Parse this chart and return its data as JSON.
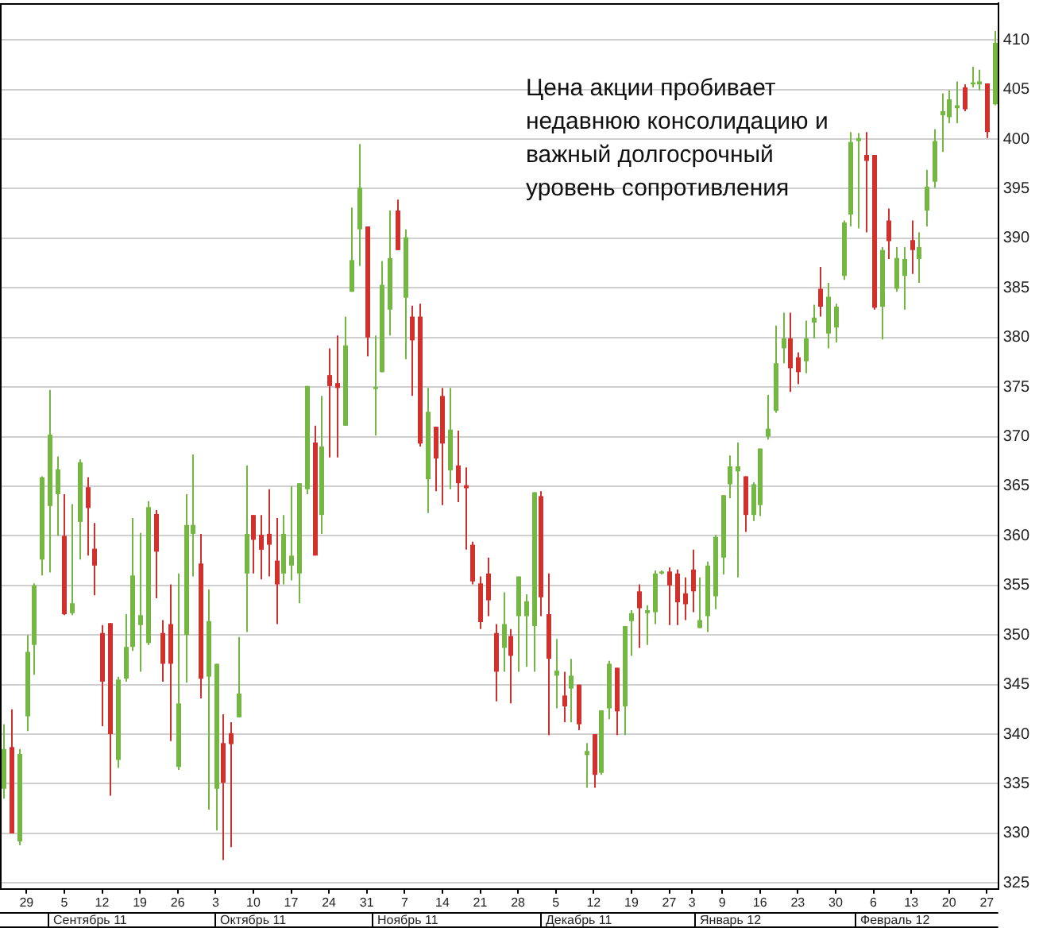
{
  "chart_data": {
    "type": "candlestick",
    "categories": [
      null,
      null,
      null,
      "29",
      null,
      null,
      null,
      null,
      "5",
      null,
      null,
      null,
      null,
      "12",
      null,
      null,
      null,
      null,
      "19",
      null,
      null,
      null,
      null,
      "26",
      null,
      null,
      null,
      null,
      "3",
      null,
      null,
      null,
      null,
      "10",
      null,
      null,
      null,
      null,
      "17",
      null,
      null,
      null,
      null,
      "24",
      null,
      null,
      null,
      null,
      "31",
      null,
      null,
      null,
      null,
      "7",
      null,
      null,
      null,
      null,
      "14",
      null,
      null,
      null,
      null,
      "21",
      null,
      null,
      null,
      null,
      "28",
      null,
      null,
      null,
      null,
      "5",
      null,
      null,
      null,
      null,
      "12",
      null,
      null,
      null,
      null,
      "19",
      null,
      null,
      null,
      null,
      "27",
      null,
      null,
      "3",
      null,
      null,
      null,
      "9",
      null,
      null,
      null,
      null,
      "16",
      null,
      null,
      null,
      null,
      "23",
      null,
      null,
      null,
      null,
      "30",
      null,
      null,
      null,
      null,
      "6",
      null,
      null,
      null,
      null,
      "13",
      null,
      null,
      null,
      null,
      "20",
      null,
      null,
      null,
      null,
      "27",
      null
    ],
    "ohlc": [
      [
        334.5,
        341,
        333.5,
        338.5
      ],
      [
        338.7,
        342.5,
        330,
        330
      ],
      [
        329.2,
        338.5,
        328.8,
        338
      ],
      [
        341.8,
        350,
        340.3,
        348.3
      ],
      [
        349,
        355.2,
        346,
        355
      ],
      [
        357.6,
        366,
        356,
        365.9
      ],
      [
        363,
        374.7,
        356.3,
        370.2
      ],
      [
        364.2,
        368,
        360,
        366.7
      ],
      [
        360,
        364.2,
        352,
        352.1
      ],
      [
        352.2,
        363.2,
        352,
        353.2
      ],
      [
        361.4,
        367.7,
        357.6,
        367.4
      ],
      [
        364.9,
        365.9,
        358,
        362.8
      ],
      [
        358.7,
        361.3,
        354,
        357
      ],
      [
        350.2,
        351,
        340.8,
        345.3
      ],
      [
        351.2,
        351.2,
        333.8,
        340
      ],
      [
        337.4,
        345.8,
        336.6,
        345.5
      ],
      [
        345.6,
        352.1,
        345.3,
        348.8
      ],
      [
        348.8,
        361.8,
        348.4,
        356
      ],
      [
        351,
        360.3,
        346.3,
        352
      ],
      [
        349.2,
        363.5,
        349,
        362.9
      ],
      [
        362.2,
        362.6,
        353.7,
        358.4
      ],
      [
        350.2,
        351.5,
        345.3,
        347.1
      ],
      [
        351.1,
        355.1,
        339.3,
        347.1
      ],
      [
        336.7,
        356.2,
        336.4,
        343.1
      ],
      [
        350,
        364.2,
        345.2,
        361.1
      ],
      [
        360.2,
        368.2,
        355.9,
        361.1
      ],
      [
        357.2,
        360.2,
        343.6,
        345.6
      ],
      [
        345.8,
        354.6,
        332.4,
        351.4
      ],
      [
        334.5,
        347.1,
        330.3,
        347.1
      ],
      [
        339.1,
        342,
        327.3,
        335.1
      ],
      [
        340.1,
        341.2,
        328.6,
        339
      ],
      [
        341.7,
        349.8,
        341.7,
        344.1
      ],
      [
        356.2,
        367.1,
        350.3,
        360.2
      ],
      [
        362.1,
        362.1,
        356.2,
        359.6
      ],
      [
        360.1,
        362.1,
        355.6,
        358.6
      ],
      [
        360.2,
        364.7,
        355.9,
        359.1
      ],
      [
        357.5,
        361.8,
        351.1,
        355.1
      ],
      [
        356.2,
        362.1,
        355.1,
        360.2
      ],
      [
        357,
        365,
        355.5,
        358
      ],
      [
        356.2,
        365.3,
        353.2,
        365.3
      ],
      [
        364.7,
        375.1,
        364.2,
        375.1
      ],
      [
        369.4,
        371.1,
        358,
        358
      ],
      [
        362.1,
        374.1,
        360.2,
        369
      ],
      [
        376.2,
        378.9,
        367.9,
        375.1
      ],
      [
        375.4,
        380.2,
        367.9,
        374.9
      ],
      [
        371.1,
        382.1,
        371.1,
        379.2
      ],
      [
        384.6,
        393.1,
        384.6,
        387.8
      ],
      [
        390.9,
        399.5,
        387.2,
        395.1
      ],
      [
        391.2,
        391.2,
        378.1,
        380
      ],
      [
        374.8,
        380.2,
        370.1,
        375
      ],
      [
        376.5,
        387.7,
        376.5,
        385.3
      ],
      [
        382.8,
        392.8,
        380.2,
        388
      ],
      [
        392.8,
        393.9,
        388.8,
        388.8
      ],
      [
        384,
        390.9,
        377.8,
        390.1
      ],
      [
        382.1,
        383.2,
        374.1,
        379.7
      ],
      [
        382.1,
        383.4,
        369,
        369.3
      ],
      [
        365.7,
        374.9,
        362.3,
        372.5
      ],
      [
        371,
        371,
        364.5,
        367.8
      ],
      [
        374.1,
        374.9,
        363.1,
        369.3
      ],
      [
        366.6,
        374.9,
        364.7,
        370.7
      ],
      [
        367.1,
        370.6,
        363.4,
        365.3
      ],
      [
        365.1,
        366.9,
        358.6,
        364.8
      ],
      [
        359.1,
        359.4,
        355.1,
        355.4
      ],
      [
        355.2,
        355.9,
        350.6,
        351.3
      ],
      [
        356.2,
        357.8,
        351.9,
        353.5
      ],
      [
        350.2,
        351.1,
        343.3,
        346.3
      ],
      [
        348.7,
        354.3,
        346.3,
        351.1
      ],
      [
        349.9,
        350.6,
        343.1,
        347.9
      ],
      [
        351.9,
        355.9,
        346.3,
        355.9
      ],
      [
        351.9,
        354.1,
        346.8,
        353.4
      ],
      [
        350.9,
        364.4,
        346.3,
        364.4
      ],
      [
        364,
        364.5,
        351.9,
        353.8
      ],
      [
        352.1,
        356.2,
        339.9,
        347.6
      ],
      [
        345.9,
        349.6,
        342.6,
        346.4
      ],
      [
        343.9,
        346.3,
        341.2,
        342.8
      ],
      [
        344.6,
        347.6,
        341.2,
        345.9
      ],
      [
        345,
        345,
        340.4,
        341
      ],
      [
        337.9,
        339.1,
        334.6,
        338.3
      ],
      [
        340,
        340,
        334.6,
        335.9
      ],
      [
        336.1,
        342.4,
        335.9,
        342.4
      ],
      [
        342.6,
        347.4,
        341.5,
        347.1
      ],
      [
        346.7,
        346.7,
        339.9,
        342.3
      ],
      [
        342.8,
        350.9,
        339.9,
        350.9
      ],
      [
        351.4,
        352.5,
        347.9,
        352.2
      ],
      [
        354.4,
        355.1,
        348.7,
        352.7
      ],
      [
        352.2,
        353,
        349,
        352.5
      ],
      [
        352.3,
        356.5,
        351.1,
        356.2
      ],
      [
        356.2,
        356.5,
        356.1,
        356.4
      ],
      [
        356.4,
        356.8,
        351,
        355
      ],
      [
        356.2,
        356.6,
        351,
        353.3
      ],
      [
        354.2,
        355.8,
        351.5,
        353.1
      ],
      [
        356.6,
        358.6,
        352.3,
        354.4
      ],
      [
        350.7,
        355.8,
        350.7,
        351.5
      ],
      [
        351.9,
        357.4,
        350.3,
        357
      ],
      [
        353.9,
        360.1,
        352.6,
        359.9
      ],
      [
        357.8,
        364.1,
        356.1,
        364.1
      ],
      [
        365.2,
        368.1,
        363.8,
        367
      ],
      [
        366.5,
        369.4,
        355.8,
        367
      ],
      [
        366,
        366,
        360.4,
        362.1
      ],
      [
        362.1,
        365.4,
        361.5,
        365.2
      ],
      [
        363.1,
        368.8,
        362,
        368.8
      ],
      [
        370,
        374.2,
        369.7,
        370.8
      ],
      [
        372.6,
        381.2,
        372.4,
        377.4
      ],
      [
        378.9,
        382.5,
        377.4,
        379.9
      ],
      [
        379.9,
        382.5,
        374.5,
        376.9
      ],
      [
        378,
        378.5,
        375.3,
        376.5
      ],
      [
        377.6,
        381.7,
        376.4,
        379.9
      ],
      [
        381.5,
        383.3,
        379.9,
        382
      ],
      [
        384.9,
        387.1,
        382.1,
        383.1
      ],
      [
        380.4,
        385.5,
        378.9,
        384.1
      ],
      [
        381,
        383.4,
        379.5,
        383.1
      ],
      [
        386.2,
        391.8,
        385.8,
        391.6
      ],
      [
        392.4,
        400.7,
        391.2,
        399.7
      ],
      [
        399.8,
        400.6,
        391,
        400.1
      ],
      [
        398.4,
        400.7,
        390.6,
        397.8
      ],
      [
        398.4,
        398.4,
        382.8,
        383
      ],
      [
        383.1,
        389.1,
        379.8,
        388.8
      ],
      [
        391.8,
        393,
        387.9,
        389.7
      ],
      [
        384.9,
        389.1,
        384.6,
        388
      ],
      [
        386.2,
        389.1,
        382.8,
        387.9
      ],
      [
        389.8,
        391.8,
        386.4,
        388.8
      ],
      [
        387.9,
        390.6,
        385.5,
        389.1
      ],
      [
        392.8,
        396.9,
        391.2,
        395.2
      ],
      [
        395.7,
        401,
        395.1,
        399.8
      ],
      [
        402.4,
        404.6,
        398.7,
        402.8
      ],
      [
        402.2,
        404.9,
        401.6,
        404
      ],
      [
        403.1,
        405.8,
        401.6,
        403.4
      ],
      [
        405.2,
        405.5,
        402.8,
        403
      ],
      [
        405.5,
        407.3,
        405.2,
        405.7
      ],
      [
        405.5,
        407,
        404.9,
        405.8
      ],
      [
        405.6,
        405.6,
        400.1,
        400.7
      ],
      [
        403.5,
        410.9,
        403.4,
        409.7
      ]
    ],
    "colors": [
      "#74b843",
      "#d0312d",
      "#74b843",
      "#74b843",
      "#74b843",
      "#74b843",
      "#74b843",
      "#74b843",
      "#d0312d",
      "#74b843",
      "#74b843",
      "#d0312d",
      "#d0312d",
      "#d0312d",
      "#d0312d",
      "#74b843",
      "#74b843",
      "#74b843",
      "#74b843",
      "#74b843",
      "#d0312d",
      "#d0312d",
      "#d0312d",
      "#74b843",
      "#74b843",
      "#74b843",
      "#d0312d",
      "#74b843",
      "#74b843",
      "#d0312d",
      "#d0312d",
      "#74b843",
      "#74b843",
      "#d0312d",
      "#d0312d",
      "#d0312d",
      "#d0312d",
      "#74b843",
      "#74b843",
      "#74b843",
      "#74b843",
      "#d0312d",
      "#74b843",
      "#d0312d",
      "#d0312d",
      "#74b843",
      "#74b843",
      "#74b843",
      "#d0312d",
      "#74b843",
      "#74b843",
      "#74b843",
      "#d0312d",
      "#74b843",
      "#d0312d",
      "#d0312d",
      "#74b843",
      "#d0312d",
      "#d0312d",
      "#74b843",
      "#d0312d",
      "#d0312d",
      "#d0312d",
      "#d0312d",
      "#d0312d",
      "#d0312d",
      "#74b843",
      "#d0312d",
      "#74b843",
      "#74b843",
      "#74b843",
      "#d0312d",
      "#d0312d",
      "#74b843",
      "#d0312d",
      "#74b843",
      "#d0312d",
      "#74b843",
      "#d0312d",
      "#74b843",
      "#74b843",
      "#d0312d",
      "#74b843",
      "#74b843",
      "#d0312d",
      "#74b843",
      "#74b843",
      "#74b843",
      "#d0312d",
      "#d0312d",
      "#d0312d",
      "#d0312d",
      "#74b843",
      "#74b843",
      "#74b843",
      "#74b843",
      "#74b843",
      "#74b843",
      "#d0312d",
      "#74b843",
      "#74b843",
      "#74b843",
      "#74b843",
      "#74b843",
      "#d0312d",
      "#d0312d",
      "#74b843",
      "#74b843",
      "#d0312d",
      "#74b843",
      "#74b843",
      "#74b843",
      "#74b843",
      "#74b843",
      "#d0312d",
      "#d0312d",
      "#74b843",
      "#d0312d",
      "#74b843",
      "#74b843",
      "#d0312d",
      "#74b843",
      "#74b843",
      "#74b843",
      "#74b843",
      "#74b843",
      "#74b843",
      "#d0312d",
      "#74b843",
      "#74b843",
      "#d0312d",
      "#74b843"
    ],
    "ylim": [
      324.4,
      413.7
    ],
    "yticks": [
      325,
      330,
      335,
      340,
      345,
      350,
      355,
      360,
      365,
      370,
      375,
      380,
      385,
      390,
      395,
      400,
      405,
      410
    ],
    "grid": "y",
    "annotations": [
      "Цена акции пробивает недавнюю консолидацию и важный долгосрочный уровень сопротивления",
      "Сентябрь 11",
      "Октябрь 11",
      "Ноябрь 11",
      "Декабрь 11",
      "Январь 12",
      "Февраль 12"
    ]
  }
}
